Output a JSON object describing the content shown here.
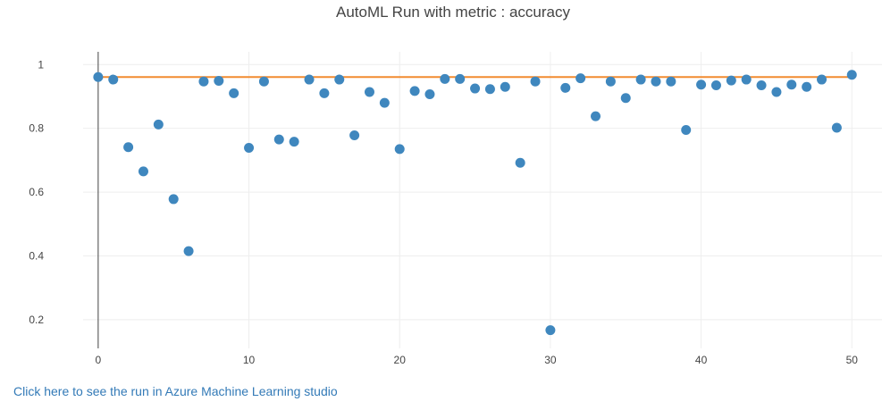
{
  "chart_data": {
    "type": "scatter",
    "title": "AutoML Run with metric : accuracy",
    "xlabel": "",
    "ylabel": "",
    "xlim": [
      -1,
      52
    ],
    "ylim": [
      0.11,
      1.04
    ],
    "x_ticks": [
      0,
      10,
      20,
      30,
      40,
      50
    ],
    "x_tick_labels": [
      "0",
      "10",
      "20",
      "30",
      "40",
      "50"
    ],
    "y_ticks": [
      0.2,
      0.4,
      0.6,
      0.8,
      1
    ],
    "y_tick_labels": [
      "0.2",
      "0.4",
      "0.6",
      "0.8",
      "1"
    ],
    "grid": true,
    "legend": "none",
    "series": [
      {
        "type": "scatter",
        "color": "#3f87be",
        "x": [
          0,
          1,
          2,
          3,
          4,
          5,
          6,
          7,
          8,
          9,
          10,
          11,
          12,
          13,
          14,
          15,
          16,
          17,
          18,
          19,
          20,
          21,
          22,
          23,
          24,
          25,
          26,
          27,
          28,
          29,
          30,
          31,
          32,
          33,
          34,
          35,
          36,
          37,
          38,
          39,
          40,
          41,
          42,
          43,
          44,
          45,
          46,
          47,
          48,
          49,
          50
        ],
        "y": [
          0.961,
          0.953,
          0.741,
          0.665,
          0.812,
          0.578,
          0.415,
          0.947,
          0.949,
          0.91,
          0.739,
          0.947,
          0.765,
          0.758,
          0.953,
          0.91,
          0.953,
          0.778,
          0.914,
          0.88,
          0.735,
          0.917,
          0.907,
          0.955,
          0.955,
          0.925,
          0.923,
          0.93,
          0.692,
          0.947,
          0.167,
          0.927,
          0.957,
          0.838,
          0.947,
          0.895,
          0.953,
          0.947,
          0.947,
          0.795,
          0.937,
          0.935,
          0.95,
          0.953,
          0.935,
          0.914,
          0.937,
          0.93,
          0.953,
          0.802,
          0.968
        ]
      },
      {
        "type": "line",
        "color": "#f28b30",
        "x": [
          0,
          50
        ],
        "y": [
          0.961,
          0.961
        ]
      }
    ]
  },
  "footer": {
    "link_text": "Click here to see the run in Azure Machine Learning studio"
  }
}
